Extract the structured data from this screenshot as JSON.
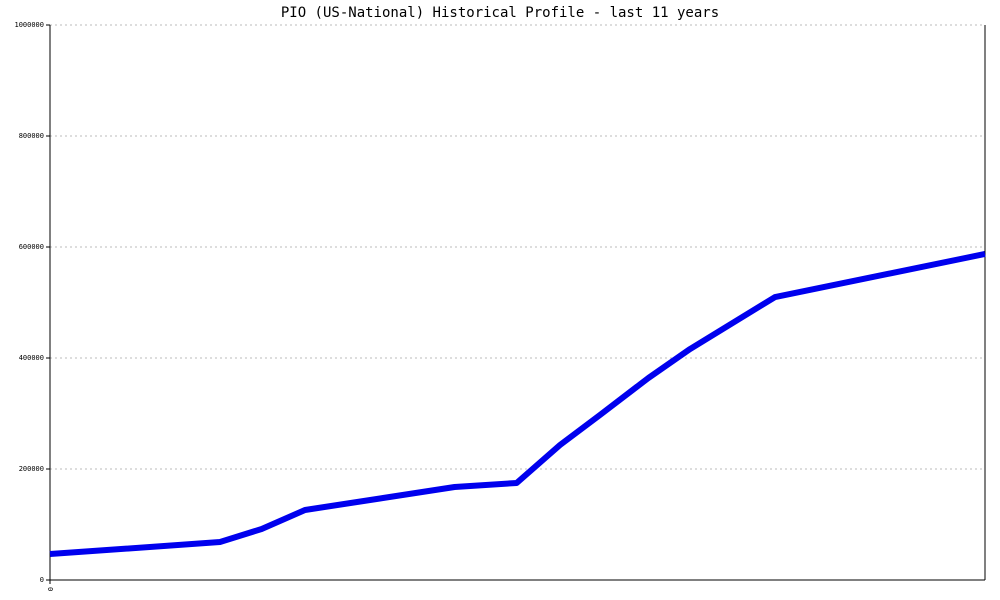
{
  "chart_data": {
    "type": "line",
    "title": "PIO (US-National) Historical Profile - last 11 years",
    "x": [
      0,
      2.0,
      2.49,
      3.0,
      4.76,
      5.49,
      6.0,
      6.47,
      7.04,
      7.53,
      8.53,
      11
    ],
    "series": [
      {
        "name": "PIO",
        "color": "#0000ee",
        "values": [
          46800,
          68500,
          91900,
          126100,
          167600,
          174800,
          243200,
          297300,
          364000,
          416200,
          509900,
          587400
        ]
      }
    ],
    "xlim": [
      0,
      11
    ],
    "xticks": [
      0
    ],
    "ylim": [
      0,
      1000000
    ],
    "yticks": [
      0,
      200000,
      400000,
      600000,
      800000,
      1000000
    ],
    "grid": true
  }
}
